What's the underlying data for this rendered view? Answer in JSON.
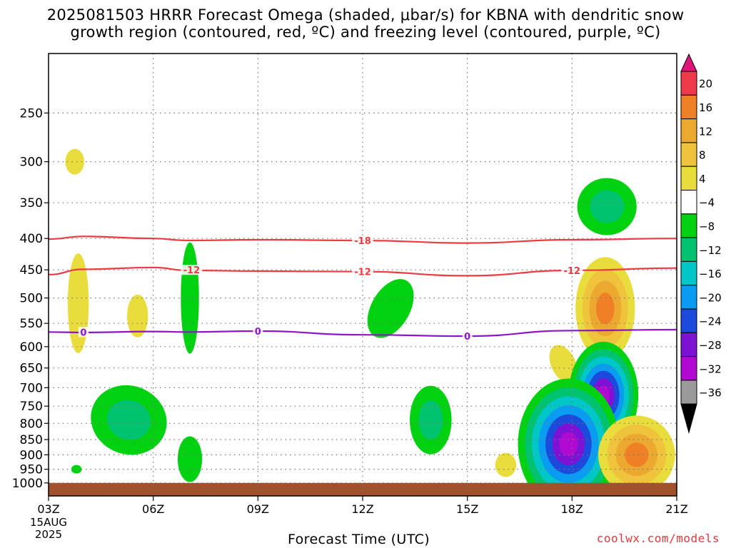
{
  "chart_data": {
    "type": "heatmap",
    "title_line1": "2025081503 HRRR Forecast Omega (shaded, μbar/s) for KBNA with dendritic snow",
    "title_line2": "growth region (contoured, red, ºC) and freezing level (contoured, purple, ºC)",
    "xlabel": "Forecast Time (UTC)",
    "x_ticks": [
      "03Z",
      "06Z",
      "09Z",
      "12Z",
      "15Z",
      "18Z",
      "21Z"
    ],
    "x_hours": [
      3,
      6,
      9,
      12,
      15,
      18,
      21
    ],
    "x_date_label": [
      "15AUG",
      "2025"
    ],
    "y_ticks": [
      250,
      300,
      350,
      400,
      450,
      500,
      550,
      600,
      650,
      700,
      750,
      800,
      850,
      900,
      950,
      1000
    ],
    "y_unit": "hPa",
    "y_scale": "log-pressure",
    "ylim": [
      1050,
      200
    ],
    "xlim": [
      3,
      21
    ],
    "grid": true,
    "colorbar": {
      "labels": [
        "20",
        "16",
        "12",
        "8",
        "4",
        "−4",
        "−8",
        "−12",
        "−16",
        "−20",
        "−24",
        "−28",
        "−32",
        "−36"
      ],
      "colors": [
        "#ee3a4a",
        "#f08026",
        "#eca930",
        "#f0c33d",
        "#e9dd3d",
        "#ffffff",
        "#00d110",
        "#00c36f",
        "#00c7c7",
        "#0a9cf0",
        "#1c4adc",
        "#7d12d4",
        "#b00ad2",
        "#9a9a9a"
      ],
      "top_arrow_color": "#e0157a",
      "bottom_arrow_color": "#000000"
    },
    "contours": {
      "dendritic_minus18": {
        "label": "-18",
        "color": "#ee3a42",
        "points": [
          [
            3,
            401
          ],
          [
            4,
            397
          ],
          [
            6,
            400
          ],
          [
            7,
            403
          ],
          [
            9,
            402
          ],
          [
            12,
            403
          ],
          [
            15,
            407
          ],
          [
            18,
            402
          ],
          [
            21,
            400
          ]
        ]
      },
      "dendritic_minus12": {
        "label": "-12",
        "color": "#ee3a42",
        "points": [
          [
            3,
            458
          ],
          [
            4,
            449
          ],
          [
            6,
            446
          ],
          [
            7,
            451
          ],
          [
            9,
            452
          ],
          [
            12,
            453
          ],
          [
            15,
            460
          ],
          [
            18,
            451
          ],
          [
            21,
            447
          ]
        ]
      },
      "freezing_0": {
        "label": "0",
        "color": "#8e16c6",
        "points": [
          [
            3,
            568
          ],
          [
            4,
            569
          ],
          [
            6,
            567
          ],
          [
            7,
            568
          ],
          [
            9,
            566
          ],
          [
            12,
            574
          ],
          [
            15,
            577
          ],
          [
            18,
            565
          ],
          [
            21,
            563
          ]
        ]
      }
    },
    "contour_labels": [
      {
        "text": "-18",
        "hour": 12.0,
        "p": 403,
        "color": "#ee3a42"
      },
      {
        "text": "-12",
        "hour": 7.1,
        "p": 450,
        "color": "#ee3a42"
      },
      {
        "text": "-12",
        "hour": 12.0,
        "p": 453,
        "color": "#ee3a42"
      },
      {
        "text": "-12",
        "hour": 18.0,
        "p": 451,
        "color": "#ee3a42"
      },
      {
        "text": "0",
        "hour": 4.0,
        "p": 568,
        "color": "#8e16c6"
      },
      {
        "text": "0",
        "hour": 9.0,
        "p": 566,
        "color": "#8e16c6"
      },
      {
        "text": "0",
        "hour": 15.0,
        "p": 577,
        "color": "#8e16c6"
      }
    ],
    "ground": {
      "color": "#a0522d",
      "p_top": 1000
    },
    "omega_features": [
      {
        "hour": 3.75,
        "p": 300,
        "rx": 0.27,
        "ry": 18,
        "rot": 0,
        "levels": [
          4
        ]
      },
      {
        "hour": 3.85,
        "p": 510,
        "rx": 0.3,
        "ry": 70,
        "rot": 0,
        "levels": [
          4
        ]
      },
      {
        "hour": 5.55,
        "p": 535,
        "rx": 0.3,
        "ry": 30,
        "rot": 0,
        "levels": [
          4
        ]
      },
      {
        "hour": 7.05,
        "p": 500,
        "rx": 0.26,
        "ry": 78,
        "rot": 0,
        "levels": [
          -4
        ]
      },
      {
        "hour": 5.3,
        "p": 790,
        "rx": 1.1,
        "ry": 48,
        "rot": 20,
        "levels": [
          -4,
          -8
        ]
      },
      {
        "hour": 7.05,
        "p": 915,
        "rx": 0.35,
        "ry": 32,
        "rot": 0,
        "levels": [
          -4
        ]
      },
      {
        "hour": 3.8,
        "p": 950,
        "rx": 0.15,
        "ry": 6,
        "rot": 0,
        "levels": [
          -4
        ]
      },
      {
        "hour": 12.8,
        "p": 520,
        "rx": 0.55,
        "ry": 45,
        "rot": 30,
        "levels": [
          -4
        ]
      },
      {
        "hour": 13.95,
        "p": 790,
        "rx": 0.6,
        "ry": 48,
        "rot": 0,
        "levels": [
          -4,
          -8
        ]
      },
      {
        "hour": 16.1,
        "p": 935,
        "rx": 0.3,
        "ry": 17,
        "rot": 0,
        "levels": [
          4
        ]
      },
      {
        "hour": 19.0,
        "p": 355,
        "rx": 0.85,
        "ry": 40,
        "rot": 0,
        "levels": [
          -4,
          -8
        ]
      },
      {
        "hour": 18.95,
        "p": 520,
        "rx": 0.85,
        "ry": 72,
        "rot": 0,
        "levels": [
          4,
          8,
          12,
          16
        ]
      },
      {
        "hour": 17.75,
        "p": 640,
        "rx": 0.35,
        "ry": 28,
        "rot": -25,
        "levels": [
          4
        ]
      },
      {
        "hour": 18.9,
        "p": 720,
        "rx": 1.0,
        "ry": 75,
        "rot": 0,
        "levels": [
          -4,
          -8,
          -12,
          -16,
          -20,
          -24,
          -28
        ]
      },
      {
        "hour": 17.9,
        "p": 865,
        "rx": 1.45,
        "ry": 92,
        "rot": 0,
        "levels": [
          -4,
          -8,
          -12,
          -16,
          -20,
          -24,
          -28
        ]
      },
      {
        "hour": 19.85,
        "p": 900,
        "rx": 1.1,
        "ry": 55,
        "rot": 0,
        "levels": [
          4,
          8,
          12,
          16
        ]
      }
    ]
  },
  "credit": "coolwx.com/models"
}
